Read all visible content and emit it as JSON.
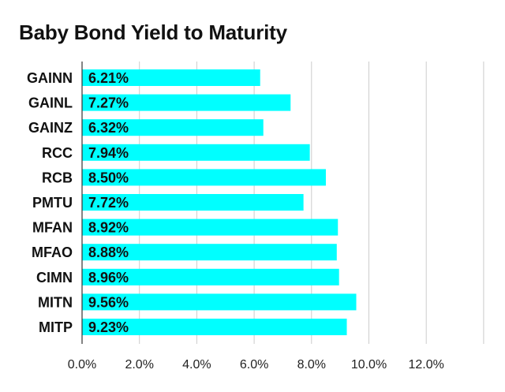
{
  "chart_data": {
    "type": "bar",
    "orientation": "horizontal",
    "title": "Baby Bond Yield to Maturity",
    "xlabel": "",
    "ylabel": "",
    "categories": [
      "GAINN",
      "GAINL",
      "GAINZ",
      "RCC",
      "RCB",
      "PMTU",
      "MFAN",
      "MFAO",
      "CIMN",
      "MITN",
      "MITP"
    ],
    "values": [
      6.21,
      7.27,
      6.32,
      7.94,
      8.5,
      7.72,
      8.92,
      8.88,
      8.96,
      9.56,
      9.23
    ],
    "value_labels": [
      "6.21%",
      "7.27%",
      "6.32%",
      "7.94%",
      "8.50%",
      "7.72%",
      "8.92%",
      "8.88%",
      "8.96%",
      "9.56%",
      "9.23%"
    ],
    "x_ticks": [
      0,
      2,
      4,
      6,
      8,
      10,
      12
    ],
    "x_tick_labels": [
      "0.0%",
      "2.0%",
      "4.0%",
      "6.0%",
      "8.0%",
      "10.0%",
      "12.0%"
    ],
    "xlim": [
      0,
      14
    ],
    "grid": true,
    "legend": "none",
    "colors": {
      "bar": "#00ffff",
      "gridline": "#cccccc",
      "axis": "#333333",
      "text": "#111111"
    }
  }
}
